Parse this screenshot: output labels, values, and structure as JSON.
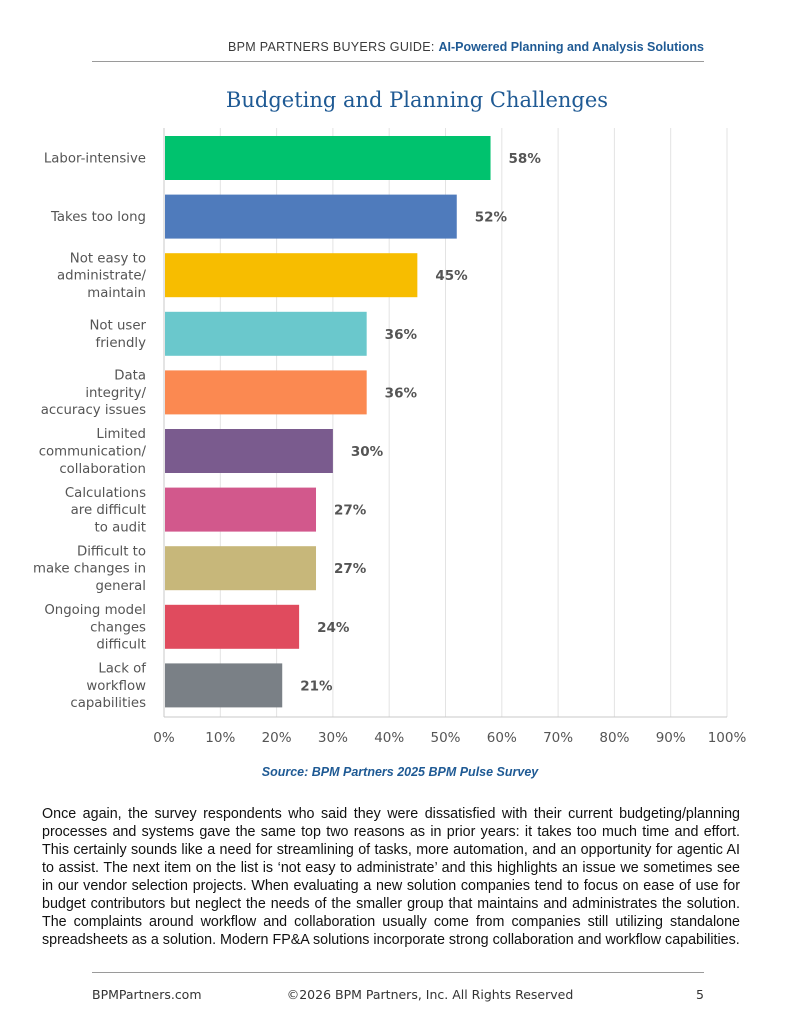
{
  "header": {
    "prefix": "BPM PARTNERS BUYERS GUIDE:",
    "highlight": "AI-Powered Planning and Analysis Solutions"
  },
  "chart_data": {
    "type": "bar",
    "orientation": "horizontal",
    "title": "Budgeting and Planning Challenges",
    "categories": [
      [
        "Labor-intensive"
      ],
      [
        "Takes too long"
      ],
      [
        "Not easy to",
        "administrate/",
        "maintain"
      ],
      [
        "Not user",
        "friendly"
      ],
      [
        "Data",
        "integrity/",
        "accuracy issues"
      ],
      [
        "Limited",
        "communication/",
        "collaboration"
      ],
      [
        "Calculations",
        "are difficult",
        "to audit"
      ],
      [
        "Difficult to",
        "make changes in",
        "general"
      ],
      [
        "Ongoing model",
        "changes",
        "difficult"
      ],
      [
        "Lack of",
        "workflow",
        "capabilities"
      ]
    ],
    "values": [
      58,
      52,
      45,
      36,
      36,
      30,
      27,
      27,
      24,
      21
    ],
    "value_labels": [
      "58%",
      "52%",
      "45%",
      "36%",
      "36%",
      "30%",
      "27%",
      "27%",
      "24%",
      "21%"
    ],
    "colors": [
      "#00c26e",
      "#4f7bbc",
      "#f7bd00",
      "#6ac8cc",
      "#fb8951",
      "#7a5b8e",
      "#d2588c",
      "#c7b77a",
      "#e04b5e",
      "#7a8086"
    ],
    "xlim": [
      0,
      100
    ],
    "x_ticks": [
      "0%",
      "10%",
      "20%",
      "30%",
      "40%",
      "50%",
      "60%",
      "70%",
      "80%",
      "90%",
      "100%"
    ],
    "grid": true,
    "legend": "none"
  },
  "source": "Source: BPM Partners 2025 BPM Pulse Survey",
  "body": "Once again, the survey respondents who said they were dissatisfied with their current budgeting/planning processes and systems gave the same top two reasons as in prior years: it takes too much time and effort. This certainly sounds like a need for streamlining of tasks, more automation, and an opportunity for agentic AI to assist. The next item on the list is ‘not easy to administrate’ and this highlights an issue we sometimes see in our vendor selection projects. When evaluating a new solution companies tend to focus on ease of use for budget contributors but neglect the needs of the smaller group that maintains and administrates the solution. The complaints around workflow and collaboration usually come from companies still utilizing standalone spreadsheets as a solution. Modern FP&A solutions incorporate strong collaboration and workflow capabilities.",
  "footer": {
    "site": "BPMPartners.com",
    "copyright": "©2026 BPM Partners, Inc. All Rights Reserved",
    "page": "5"
  }
}
